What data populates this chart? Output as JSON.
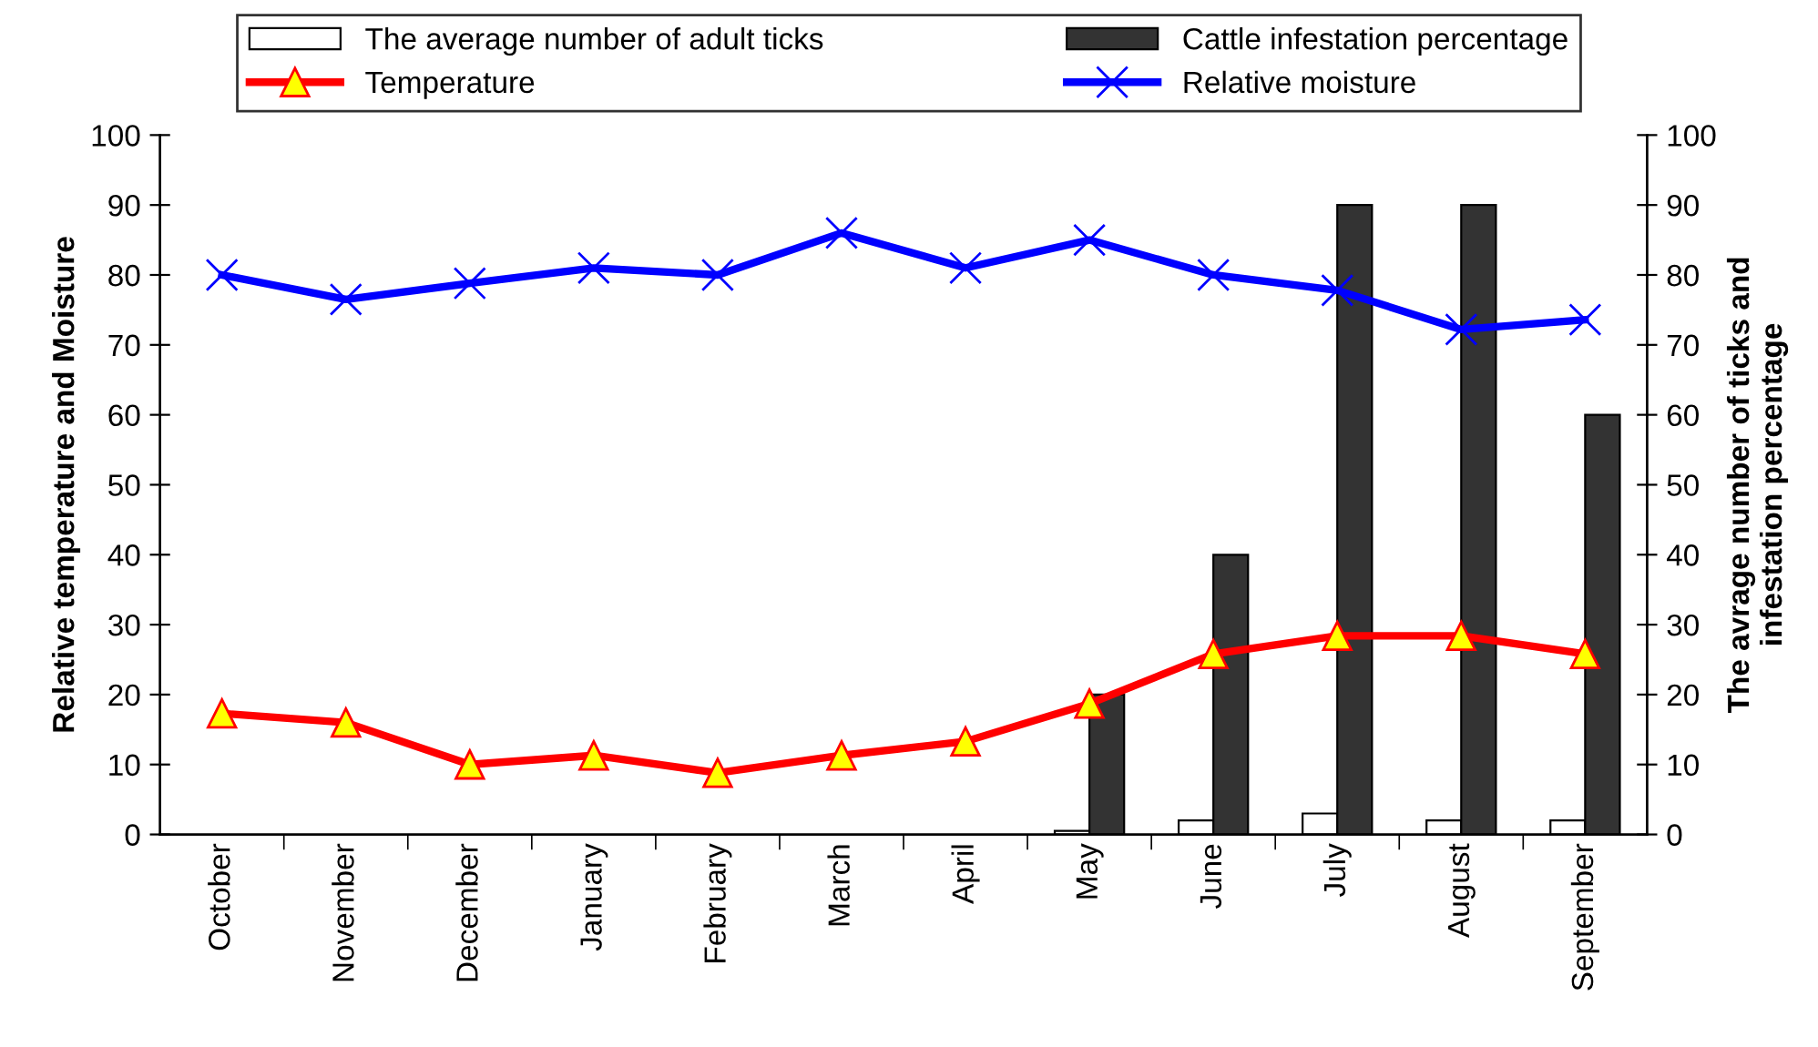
{
  "chart_data": {
    "type": "bar",
    "categories": [
      "October",
      "November",
      "December",
      "January",
      "February",
      "March",
      "April",
      "May",
      "June",
      "July",
      "August",
      "September"
    ],
    "series": [
      {
        "name": "The average number of adult ticks",
        "axis": "y2",
        "color": "#ffffff",
        "values": [
          null,
          null,
          null,
          null,
          null,
          null,
          null,
          0.5,
          2,
          3,
          2,
          2
        ]
      },
      {
        "name": "Cattle infestation percentage",
        "axis": "y2",
        "color": "#333333",
        "values": [
          null,
          null,
          null,
          null,
          null,
          null,
          null,
          20,
          40,
          90,
          90,
          60
        ]
      },
      {
        "name": "Temperature",
        "type": "line",
        "axis": "y",
        "color": "#ff0000",
        "marker": "triangle",
        "values": [
          17.3,
          16,
          10,
          11.3,
          8.8,
          11.3,
          13.3,
          18.7,
          25.8,
          28.4,
          28.4,
          25.8
        ]
      },
      {
        "name": "Relative moisture",
        "type": "line",
        "axis": "y",
        "color": "#0000ff",
        "marker": "cross",
        "values": [
          80,
          76.5,
          78.8,
          81,
          80,
          86,
          81,
          85,
          80,
          77.8,
          72.2,
          73.6
        ]
      }
    ],
    "ylabel": "Relative temperature and Moisture",
    "y2label": "The avrage number of ticks and\ninfestation percentage",
    "ylim": [
      0,
      100
    ],
    "yticks": [
      0,
      10,
      20,
      30,
      40,
      50,
      60,
      70,
      80,
      90,
      100
    ],
    "y2lim": [
      0,
      100
    ],
    "y2ticks": [
      0,
      10,
      20,
      30,
      40,
      50,
      60,
      70,
      80,
      90,
      100
    ],
    "legend": "top",
    "grid": false
  }
}
